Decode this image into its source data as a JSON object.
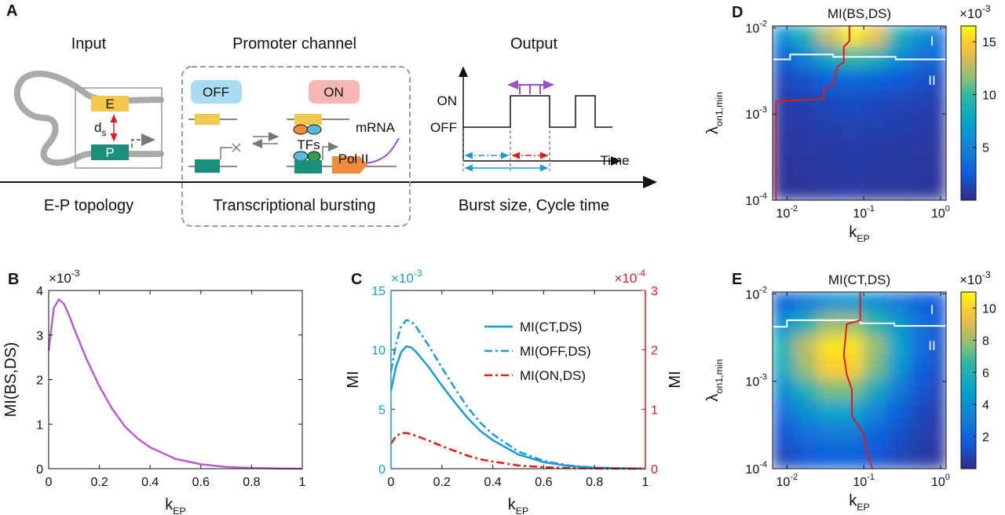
{
  "diagram": {
    "panel_label": "A",
    "stages": [
      {
        "title": "Input",
        "caption": "E-P topology"
      },
      {
        "title": "Promoter channel",
        "caption": "Transcriptional bursting"
      },
      {
        "title": "Output",
        "caption": "Burst size, Cycle time"
      }
    ],
    "input": {
      "enhancer": "E",
      "promoter": "P",
      "distance": "d",
      "distance_sub": "s"
    },
    "channel": {
      "off": "OFF",
      "on": "ON",
      "tfs": "TFs",
      "mrna": "mRNA",
      "polymerase": "Pol II"
    },
    "output": {
      "on": "ON",
      "off": "OFF",
      "time": "Time"
    }
  },
  "chart_data": [
    {
      "type": "line",
      "panel_label": "B",
      "ylabel": "MI(BS,DS)",
      "xlabel": "k",
      "xlabel_sub": "EP",
      "y_multiplier": "×10",
      "y_multiplier_exp": "-3",
      "x": [
        0,
        0.02,
        0.04,
        0.06,
        0.08,
        0.1,
        0.15,
        0.2,
        0.25,
        0.3,
        0.35,
        0.4,
        0.5,
        0.6,
        0.7,
        0.8,
        0.9,
        1
      ],
      "values": [
        2.65,
        3.6,
        3.8,
        3.7,
        3.45,
        3.15,
        2.45,
        1.85,
        1.35,
        0.95,
        0.68,
        0.48,
        0.22,
        0.1,
        0.04,
        0.015,
        0.005,
        0
      ],
      "color": "#b65fcf",
      "xlim": [
        0,
        1
      ],
      "ylim": [
        0,
        4
      ],
      "xticks": [
        0,
        0.2,
        0.4,
        0.6,
        0.8,
        1
      ],
      "yticks": [
        0,
        1,
        2,
        3,
        4
      ]
    },
    {
      "type": "line",
      "panel_label": "C",
      "ylabel": "MI",
      "y2label": "MI",
      "xlabel": "k",
      "xlabel_sub": "EP",
      "y_multiplier": "×10",
      "y_multiplier_exp": "-3",
      "y2_multiplier": "×10",
      "y2_multiplier_exp": "-4",
      "y_color": "#1a9ad6",
      "y2_color": "#e3191c",
      "legend": "right",
      "x": [
        0,
        0.02,
        0.04,
        0.06,
        0.08,
        0.1,
        0.15,
        0.2,
        0.25,
        0.3,
        0.35,
        0.4,
        0.5,
        0.6,
        0.7,
        0.8,
        0.9,
        1
      ],
      "series": [
        {
          "name": "MI(CT,DS)",
          "color": "#1a9ad6",
          "style": "solid",
          "values": [
            6.6,
            8.6,
            9.8,
            10.3,
            10.2,
            9.8,
            8.5,
            7.0,
            5.6,
            4.3,
            3.2,
            2.4,
            1.2,
            0.55,
            0.22,
            0.08,
            0.03,
            0.01
          ]
        },
        {
          "name": "MI(OFF,DS)",
          "color": "#1a9ad6",
          "style": "dash-dot",
          "values": [
            8.2,
            10.5,
            12.0,
            12.5,
            12.4,
            11.9,
            10.3,
            8.5,
            6.8,
            5.2,
            3.9,
            2.9,
            1.45,
            0.65,
            0.27,
            0.1,
            0.03,
            0.01
          ]
        },
        {
          "name": "MI(ON,DS)",
          "color": "#e3191c",
          "style": "dash-dot",
          "axis": "y2",
          "values": [
            0.42,
            0.55,
            0.6,
            0.6,
            0.58,
            0.55,
            0.47,
            0.38,
            0.3,
            0.22,
            0.16,
            0.12,
            0.055,
            0.025,
            0.01,
            0.004,
            0.001,
            0
          ]
        }
      ],
      "xlim": [
        0,
        1
      ],
      "ylim": [
        0,
        15
      ],
      "y2lim": [
        0,
        3
      ],
      "xticks": [
        0,
        0.2,
        0.4,
        0.6,
        0.8,
        1
      ],
      "yticks": [
        0,
        5,
        10,
        15
      ],
      "y2ticks": [
        0,
        1,
        2,
        3
      ]
    },
    {
      "type": "heatmap",
      "panel_label": "D",
      "title": "MI(BS,DS)",
      "xlabel": "k",
      "xlabel_sub": "EP",
      "ylabel": "λ",
      "ylabel_sub": "on1,min",
      "log_x": true,
      "log_y": true,
      "xlim": [
        0.0065,
        1.18
      ],
      "ylim": [
        0.0001,
        0.0105
      ],
      "xticks": [
        {
          "value": 0.01,
          "label": "10",
          "sup": "-2"
        },
        {
          "value": 0.1,
          "label": "10",
          "sup": "-1"
        },
        {
          "value": 1,
          "label": "10",
          "sup": "0"
        }
      ],
      "yticks": [
        {
          "value": 0.0001,
          "label": "10",
          "sup": "-4"
        },
        {
          "value": 0.001,
          "label": "10",
          "sup": "-3"
        },
        {
          "value": 0.01,
          "label": "10",
          "sup": "-2"
        }
      ],
      "x": [
        0.0089,
        0.0178,
        0.0355,
        0.0708,
        0.141,
        0.282,
        0.562,
        1.12
      ],
      "y": [
        0.0079,
        0.0045,
        0.0025,
        0.0014,
        0.0008,
        0.00045,
        0.00025,
        0.00014
      ],
      "z": [
        [
          6,
          9,
          13,
          16,
          14,
          9,
          6,
          4
        ],
        [
          3,
          5,
          8,
          10,
          9,
          6,
          4,
          3
        ],
        [
          1.5,
          2,
          3,
          3.5,
          3,
          2.5,
          2,
          1.5
        ],
        [
          1,
          1.2,
          1.5,
          1.8,
          1.6,
          1.4,
          1.2,
          1
        ],
        [
          0.8,
          1,
          1.2,
          1.3,
          1.2,
          1.1,
          1,
          0.8
        ],
        [
          0.7,
          0.8,
          0.9,
          1,
          0.9,
          0.9,
          0.8,
          0.7
        ],
        [
          0.6,
          0.7,
          0.8,
          0.9,
          0.8,
          0.8,
          0.7,
          0.6
        ],
        [
          0.5,
          0.6,
          0.7,
          0.8,
          0.7,
          0.7,
          0.6,
          0.5
        ]
      ],
      "zlim": [
        0,
        16.5
      ],
      "zticks": [
        5,
        10,
        15
      ],
      "z_multiplier": "×10",
      "z_multiplier_exp": "-3",
      "annotations": [
        "I",
        "II"
      ],
      "series": [
        {
          "color": "#ffffff",
          "x": [
            0.0065,
            0.011,
            0.011,
            0.04,
            0.04,
            0.26,
            0.26,
            1.18
          ],
          "values": [
            0.0043,
            0.0043,
            0.0049,
            0.0049,
            0.0046,
            0.0046,
            0.0043,
            0.0043
          ]
        },
        {
          "color": "#e3191c",
          "x": [
            0.0072,
            0.0072,
            0.03,
            0.03,
            0.04,
            0.045,
            0.055,
            0.055,
            0.065,
            0.065
          ],
          "values": [
            0.0001,
            0.0014,
            0.0015,
            0.002,
            0.0022,
            0.0035,
            0.004,
            0.006,
            0.007,
            0.0105
          ]
        }
      ]
    },
    {
      "type": "heatmap",
      "panel_label": "E",
      "title": "MI(CT,DS)",
      "xlabel": "k",
      "xlabel_sub": "EP",
      "ylabel": "λ",
      "ylabel_sub": "on1,min",
      "log_x": true,
      "log_y": true,
      "xlim": [
        0.0065,
        1.18
      ],
      "ylim": [
        0.0001,
        0.0105
      ],
      "xticks": [
        {
          "value": 0.01,
          "label": "10",
          "sup": "-2"
        },
        {
          "value": 0.1,
          "label": "10",
          "sup": "-1"
        },
        {
          "value": 1,
          "label": "10",
          "sup": "0"
        }
      ],
      "yticks": [
        {
          "value": 0.0001,
          "label": "10",
          "sup": "-4"
        },
        {
          "value": 0.001,
          "label": "10",
          "sup": "-3"
        },
        {
          "value": 0.01,
          "label": "10",
          "sup": "-2"
        }
      ],
      "x": [
        0.0089,
        0.0178,
        0.0355,
        0.0708,
        0.141,
        0.282,
        0.562,
        1.12
      ],
      "y": [
        0.0079,
        0.0045,
        0.0025,
        0.0014,
        0.0008,
        0.00045,
        0.00025,
        0.00014
      ],
      "z": [
        [
          2,
          3,
          4,
          4.5,
          4,
          3,
          2,
          1.5
        ],
        [
          4,
          6,
          8,
          8,
          6.5,
          4.5,
          2.5,
          1.5
        ],
        [
          6,
          8.5,
          10.5,
          10.5,
          8,
          5,
          2.5,
          1.2
        ],
        [
          5.5,
          8,
          10,
          10,
          7.5,
          4.5,
          2,
          1
        ],
        [
          4,
          6,
          7.5,
          7.5,
          5.5,
          3,
          1.5,
          0.8
        ],
        [
          2.5,
          4,
          5,
          5,
          3.5,
          2,
          1,
          0.6
        ],
        [
          1.5,
          2.5,
          3,
          3,
          2.2,
          1.3,
          0.8,
          0.5
        ],
        [
          1,
          1.5,
          2,
          2,
          1.5,
          1,
          0.6,
          0.4
        ]
      ],
      "zlim": [
        0,
        11
      ],
      "zticks": [
        2,
        4,
        6,
        8,
        10
      ],
      "z_multiplier": "×10",
      "z_multiplier_exp": "-3",
      "annotations": [
        "I",
        "II"
      ],
      "series": [
        {
          "color": "#ffffff",
          "x": [
            0.0065,
            0.01,
            0.01,
            0.09,
            0.09,
            0.25,
            0.25,
            1.18
          ],
          "values": [
            0.0042,
            0.0042,
            0.005,
            0.005,
            0.0046,
            0.0046,
            0.0043,
            0.0043
          ]
        },
        {
          "color": "#e3191c",
          "x": [
            0.09,
            0.09,
            0.06,
            0.055,
            0.06,
            0.07,
            0.07,
            0.1,
            0.11,
            0.13
          ],
          "values": [
            0.0105,
            0.005,
            0.0045,
            0.002,
            0.0012,
            0.0008,
            0.0004,
            0.00025,
            0.00015,
            0.0001
          ]
        }
      ]
    }
  ]
}
